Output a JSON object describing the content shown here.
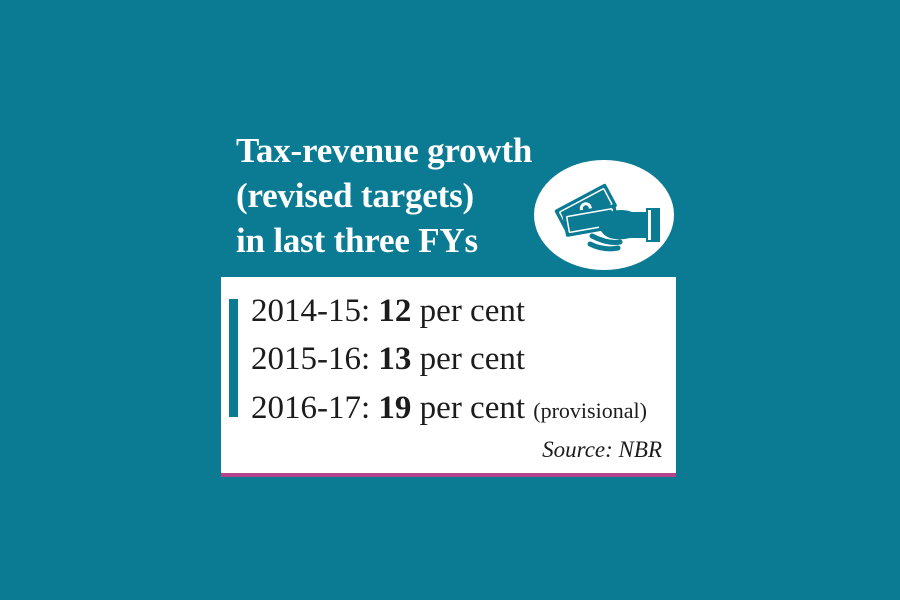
{
  "title": {
    "lines": [
      "Tax-revenue growth",
      "(revised targets)",
      "in last three FYs"
    ]
  },
  "emblem": {
    "icon": "hand-with-money-icon"
  },
  "rows": [
    {
      "year": "2014-15:",
      "value": "12",
      "unit": "per cent",
      "note": ""
    },
    {
      "year": "2015-16:",
      "value": "13",
      "unit": "per cent",
      "note": ""
    },
    {
      "year": "2016-17:",
      "value": "19",
      "unit": "per cent",
      "note": "(provisional)"
    }
  ],
  "source": "Source: NBR",
  "colors": {
    "background": "#0b7a93",
    "accent_underline": "#b4438d",
    "card": "#ffffff"
  }
}
